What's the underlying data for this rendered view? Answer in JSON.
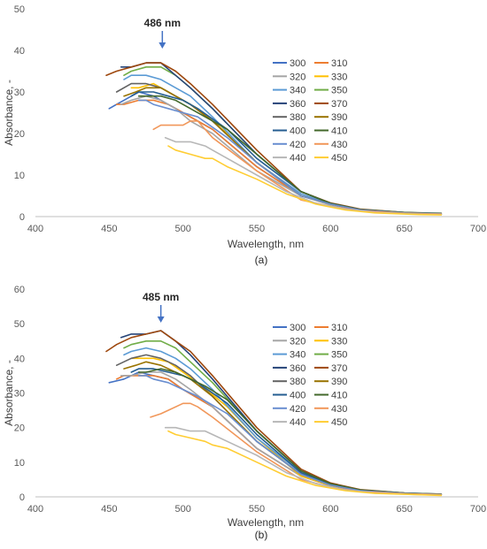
{
  "chart_data": [
    {
      "type": "line",
      "caption": "(a)",
      "xlabel": "Wavelength, nm",
      "ylabel": "Absorbance, -",
      "xlim": [
        400,
        700
      ],
      "ylim": [
        0,
        50
      ],
      "xticks": [
        400,
        450,
        500,
        550,
        600,
        650,
        700
      ],
      "yticks": [
        0,
        10,
        20,
        30,
        40,
        50
      ],
      "grid": false,
      "legend_position": "right",
      "annotation": {
        "label": "486 nm",
        "x": 486
      },
      "series": [
        {
          "name": "300",
          "color": "#4472C4",
          "x": [
            450,
            460,
            470,
            480,
            490,
            500,
            520,
            550,
            580,
            600,
            620,
            650,
            675
          ],
          "y": [
            26,
            28,
            30,
            29,
            27,
            25,
            21,
            12,
            5,
            3,
            1.6,
            0.9,
            0.6
          ]
        },
        {
          "name": "310",
          "color": "#ED7D31",
          "x": [
            455,
            460,
            470,
            480,
            490,
            500,
            520,
            550,
            580,
            600,
            620,
            650,
            675
          ],
          "y": [
            27,
            27,
            28,
            28,
            27,
            25,
            21,
            12,
            5,
            3,
            1.6,
            0.9,
            0.6
          ]
        },
        {
          "name": "320",
          "color": "#A5A5A5",
          "x": [
            458,
            465,
            475,
            485,
            495,
            505,
            520,
            550,
            580,
            600,
            620,
            650,
            675
          ],
          "y": [
            27,
            28,
            29,
            28,
            26,
            23,
            20,
            11,
            5,
            2.8,
            1.5,
            0.9,
            0.6
          ]
        },
        {
          "name": "330",
          "color": "#FFC000",
          "x": [
            465,
            470,
            480,
            490,
            500,
            510,
            530,
            550,
            580,
            600,
            620,
            650,
            675
          ],
          "y": [
            31,
            31,
            32,
            30,
            28,
            26,
            20,
            13,
            5,
            3,
            1.6,
            0.9,
            0.6
          ]
        },
        {
          "name": "340",
          "color": "#5B9BD5",
          "x": [
            460,
            465,
            475,
            485,
            495,
            505,
            520,
            550,
            580,
            600,
            620,
            650,
            675
          ],
          "y": [
            33,
            34,
            34,
            33,
            31,
            29,
            24,
            13,
            5.5,
            3,
            1.6,
            0.9,
            0.6
          ]
        },
        {
          "name": "350",
          "color": "#70AD47",
          "x": [
            460,
            465,
            475,
            485,
            495,
            505,
            520,
            550,
            580,
            600,
            620,
            650,
            675
          ],
          "y": [
            34,
            35,
            36,
            36,
            34,
            31,
            26,
            15,
            6,
            3.2,
            1.7,
            0.9,
            0.6
          ]
        },
        {
          "name": "360",
          "color": "#264478",
          "x": [
            458,
            465,
            475,
            485,
            495,
            505,
            520,
            550,
            580,
            600,
            620,
            650,
            675
          ],
          "y": [
            36,
            36,
            37,
            37,
            34,
            31,
            26,
            15,
            6,
            3.2,
            1.7,
            0.9,
            0.6
          ]
        },
        {
          "name": "370",
          "color": "#9E480E",
          "x": [
            448,
            455,
            465,
            475,
            485,
            495,
            505,
            520,
            550,
            580,
            600,
            620,
            650,
            675
          ],
          "y": [
            34,
            35,
            36,
            37,
            37,
            35,
            32,
            27,
            16,
            6,
            3.3,
            1.8,
            1,
            0.6
          ]
        },
        {
          "name": "380",
          "color": "#636363",
          "x": [
            455,
            465,
            475,
            485,
            495,
            505,
            520,
            550,
            580,
            600,
            620,
            650,
            675
          ],
          "y": [
            30,
            32,
            32,
            31,
            29,
            27,
            23,
            13,
            5,
            3,
            1.6,
            0.9,
            0.6
          ]
        },
        {
          "name": "390",
          "color": "#997300",
          "x": [
            460,
            468,
            475,
            485,
            495,
            505,
            520,
            550,
            580,
            600,
            620,
            650,
            675
          ],
          "y": [
            29,
            30,
            31,
            31,
            29,
            27,
            23,
            13,
            5,
            3,
            1.6,
            0.9,
            0.6
          ]
        },
        {
          "name": "400",
          "color": "#255E91",
          "x": [
            465,
            470,
            480,
            490,
            500,
            510,
            530,
            550,
            580,
            600,
            620,
            650,
            675
          ],
          "y": [
            29,
            30,
            30,
            29,
            28,
            26,
            21,
            14,
            6,
            3.2,
            1.7,
            1,
            0.7
          ]
        },
        {
          "name": "410",
          "color": "#43682B",
          "x": [
            470,
            475,
            485,
            495,
            505,
            515,
            530,
            550,
            580,
            600,
            620,
            650,
            675
          ],
          "y": [
            29,
            29,
            29,
            28,
            26,
            24,
            21,
            15,
            6,
            3.2,
            1.7,
            1,
            0.8
          ]
        },
        {
          "name": "420",
          "color": "#698ED0",
          "x": [
            470,
            475,
            480,
            490,
            500,
            510,
            530,
            550,
            580,
            600,
            620,
            650,
            675
          ],
          "y": [
            28,
            28,
            27,
            26,
            25,
            24,
            19,
            13,
            5,
            3,
            1.6,
            0.9,
            0.7
          ]
        },
        {
          "name": "430",
          "color": "#F1975A",
          "x": [
            480,
            485,
            490,
            500,
            505,
            510,
            520,
            550,
            580,
            600,
            620,
            650,
            675
          ],
          "y": [
            21,
            22,
            22,
            22,
            23,
            23,
            19,
            11,
            4,
            2.5,
            1.4,
            0.8,
            0.6
          ]
        },
        {
          "name": "440",
          "color": "#B7B7B7",
          "x": [
            488,
            495,
            505,
            515,
            520,
            530,
            550,
            570,
            590,
            610,
            630,
            660,
            675
          ],
          "y": [
            19,
            18,
            18,
            17,
            16,
            14,
            10,
            6,
            3.2,
            1.8,
            1,
            0.6,
            0.5
          ]
        },
        {
          "name": "450",
          "color": "#FFCD33",
          "x": [
            490,
            495,
            505,
            515,
            520,
            530,
            550,
            570,
            590,
            610,
            630,
            660,
            675
          ],
          "y": [
            17,
            16,
            15,
            14,
            14,
            12,
            9,
            5.5,
            3,
            1.6,
            0.9,
            0.5,
            0.4
          ]
        }
      ]
    },
    {
      "type": "line",
      "caption": "(b)",
      "xlabel": "Wavelength, nm",
      "ylabel": "Absorbance, -",
      "xlim": [
        400,
        700
      ],
      "ylim": [
        0,
        60
      ],
      "xticks": [
        400,
        450,
        500,
        550,
        600,
        650,
        700
      ],
      "yticks": [
        0,
        10,
        20,
        30,
        40,
        50,
        60
      ],
      "grid": false,
      "legend_position": "right",
      "annotation": {
        "label": "485 nm",
        "x": 485
      },
      "series": [
        {
          "name": "300",
          "color": "#4472C4",
          "x": [
            450,
            460,
            470,
            480,
            490,
            500,
            520,
            550,
            580,
            600,
            620,
            650,
            675
          ],
          "y": [
            33,
            34,
            36,
            35,
            34,
            31,
            26,
            14,
            6,
            3.2,
            1.7,
            1,
            0.7
          ]
        },
        {
          "name": "310",
          "color": "#ED7D31",
          "x": [
            455,
            460,
            470,
            480,
            490,
            500,
            520,
            550,
            580,
            600,
            620,
            650,
            675
          ],
          "y": [
            34,
            35,
            35,
            35,
            34,
            31,
            26,
            14,
            6,
            3.2,
            1.7,
            1,
            0.7
          ]
        },
        {
          "name": "320",
          "color": "#A5A5A5",
          "x": [
            458,
            465,
            475,
            485,
            495,
            505,
            520,
            550,
            580,
            600,
            620,
            650,
            675
          ],
          "y": [
            35,
            35,
            36,
            36,
            34,
            31,
            26,
            14,
            6,
            3.2,
            1.7,
            1,
            0.7
          ]
        },
        {
          "name": "330",
          "color": "#FFC000",
          "x": [
            465,
            470,
            480,
            490,
            500,
            510,
            530,
            550,
            580,
            600,
            620,
            650,
            675
          ],
          "y": [
            40,
            40,
            40,
            39,
            36,
            33,
            26,
            17,
            6,
            3.3,
            1.8,
            1,
            0.7
          ]
        },
        {
          "name": "340",
          "color": "#5B9BD5",
          "x": [
            460,
            465,
            475,
            485,
            495,
            505,
            520,
            550,
            580,
            600,
            620,
            650,
            675
          ],
          "y": [
            41,
            42,
            43,
            42,
            40,
            37,
            31,
            17,
            7,
            3.5,
            1.8,
            1,
            0.7
          ]
        },
        {
          "name": "350",
          "color": "#70AD47",
          "x": [
            460,
            465,
            475,
            485,
            495,
            505,
            520,
            550,
            580,
            600,
            620,
            650,
            675
          ],
          "y": [
            43,
            44,
            45,
            45,
            43,
            39,
            33,
            19,
            7.5,
            3.8,
            2,
            1,
            0.7
          ]
        },
        {
          "name": "360",
          "color": "#264478",
          "x": [
            458,
            465,
            475,
            485,
            495,
            505,
            520,
            550,
            580,
            600,
            620,
            650,
            675
          ],
          "y": [
            46,
            47,
            47,
            48,
            45,
            41,
            34,
            19,
            7.5,
            3.8,
            2,
            1,
            0.7
          ]
        },
        {
          "name": "370",
          "color": "#9E480E",
          "x": [
            448,
            455,
            465,
            475,
            485,
            495,
            505,
            520,
            550,
            580,
            600,
            620,
            650,
            675
          ],
          "y": [
            42,
            44,
            46,
            47,
            48,
            45,
            42,
            35,
            20,
            8,
            4,
            2.1,
            1.1,
            0.7
          ]
        },
        {
          "name": "380",
          "color": "#636363",
          "x": [
            455,
            465,
            475,
            485,
            495,
            505,
            520,
            550,
            580,
            600,
            620,
            650,
            675
          ],
          "y": [
            38,
            40,
            41,
            40,
            38,
            35,
            29,
            16,
            6.5,
            3.4,
            1.8,
            1,
            0.7
          ]
        },
        {
          "name": "390",
          "color": "#997300",
          "x": [
            460,
            468,
            475,
            485,
            495,
            505,
            520,
            550,
            580,
            600,
            620,
            650,
            675
          ],
          "y": [
            37,
            38,
            39,
            38,
            36,
            34,
            29,
            16,
            6.5,
            3.4,
            1.8,
            1,
            0.7
          ]
        },
        {
          "name": "400",
          "color": "#255E91",
          "x": [
            465,
            470,
            480,
            490,
            500,
            510,
            530,
            550,
            580,
            600,
            620,
            650,
            675
          ],
          "y": [
            36,
            37,
            37,
            36,
            35,
            33,
            27,
            18,
            7,
            3.6,
            1.9,
            1.1,
            0.8
          ]
        },
        {
          "name": "410",
          "color": "#43682B",
          "x": [
            470,
            475,
            485,
            495,
            505,
            515,
            530,
            550,
            580,
            600,
            620,
            650,
            675
          ],
          "y": [
            36,
            36,
            37,
            36,
            34,
            32,
            28,
            19,
            7.5,
            3.8,
            2,
            1.1,
            0.8
          ]
        },
        {
          "name": "420",
          "color": "#698ED0",
          "x": [
            470,
            475,
            480,
            490,
            500,
            510,
            530,
            550,
            580,
            600,
            620,
            650,
            675
          ],
          "y": [
            35,
            35,
            34,
            33,
            31,
            29,
            24,
            16,
            6.5,
            3.4,
            1.8,
            1,
            0.7
          ]
        },
        {
          "name": "430",
          "color": "#F1975A",
          "x": [
            478,
            485,
            490,
            500,
            505,
            510,
            520,
            550,
            580,
            600,
            620,
            650,
            675
          ],
          "y": [
            23,
            24,
            25,
            27,
            27,
            26,
            23,
            13,
            5,
            2.8,
            1.5,
            0.9,
            0.6
          ]
        },
        {
          "name": "440",
          "color": "#B7B7B7",
          "x": [
            488,
            495,
            505,
            515,
            520,
            530,
            550,
            570,
            590,
            610,
            630,
            660,
            675
          ],
          "y": [
            20,
            20,
            19,
            19,
            18,
            16,
            12,
            7,
            3.8,
            2,
            1.1,
            0.6,
            0.5
          ]
        },
        {
          "name": "450",
          "color": "#FFCD33",
          "x": [
            490,
            495,
            505,
            515,
            520,
            530,
            550,
            570,
            590,
            610,
            630,
            660,
            675
          ],
          "y": [
            19,
            18,
            17,
            16,
            15,
            14,
            10,
            6,
            3.3,
            1.8,
            1,
            0.6,
            0.4
          ]
        }
      ]
    }
  ]
}
